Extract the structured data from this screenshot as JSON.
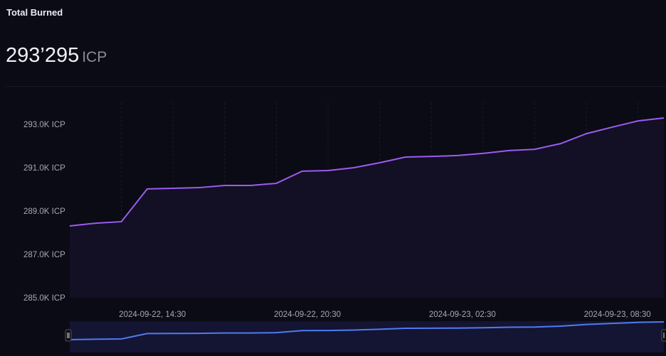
{
  "header": {
    "title": "Total Burned",
    "value": "293’295",
    "unit": "ICP"
  },
  "colors": {
    "background": "#0a0b14",
    "line": "#9b5cf0",
    "area": "#130f24",
    "navigator_line": "#4f7bef",
    "navigator_bg": "#141433"
  },
  "chart_data": {
    "type": "area",
    "title": "Total Burned",
    "xlabel": "",
    "ylabel": "",
    "x_unit": "hours since first point (hourly samples)",
    "x": [
      0,
      1,
      2,
      3,
      4,
      5,
      6,
      7,
      8,
      9,
      10,
      11,
      12,
      13,
      14,
      15,
      16,
      17,
      18,
      19,
      20,
      21,
      22,
      23
    ],
    "values": [
      288310,
      288440,
      288510,
      290020,
      290050,
      290080,
      290180,
      290180,
      290280,
      290840,
      290870,
      291000,
      291230,
      291490,
      291520,
      291560,
      291660,
      291790,
      291850,
      292110,
      292570,
      292870,
      293160,
      293295
    ],
    "ylim": [
      285000,
      294000
    ],
    "yticks": [
      {
        "value": 285000,
        "label": "285.0K ICP"
      },
      {
        "value": 287000,
        "label": "287.0K ICP"
      },
      {
        "value": 289000,
        "label": "289.0K ICP"
      },
      {
        "value": 291000,
        "label": "291.0K ICP"
      },
      {
        "value": 293000,
        "label": "293.0K ICP"
      }
    ],
    "xticks": [
      {
        "value": 3.2,
        "label": "2024-09-22, 14:30"
      },
      {
        "value": 9.2,
        "label": "2024-09-22, 20:30"
      },
      {
        "value": 15.2,
        "label": "2024-09-23, 02:30"
      },
      {
        "value": 21.2,
        "label": "2024-09-23, 08:30"
      }
    ],
    "grid": "vertical dashed",
    "navigator": true
  }
}
